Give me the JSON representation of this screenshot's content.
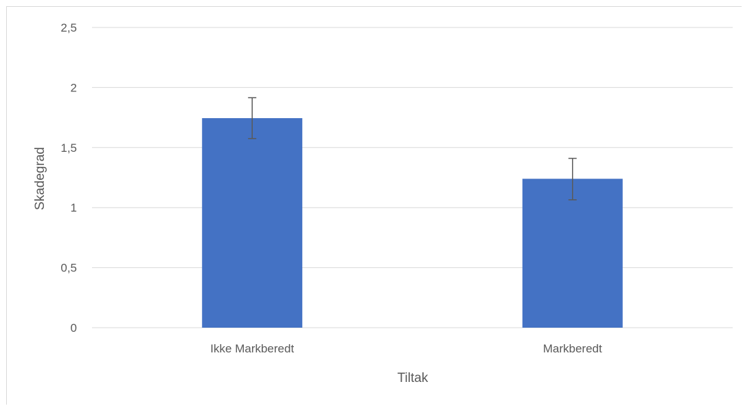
{
  "chart_data": {
    "type": "bar",
    "title": "",
    "xlabel": "Tiltak",
    "ylabel": "Skadegrad",
    "categories": [
      "Ikke Markberedt",
      "Markberedt"
    ],
    "series": [
      {
        "values": [
          1.745,
          1.24
        ],
        "error_low": [
          1.575,
          1.065
        ],
        "error_high": [
          1.915,
          1.41
        ]
      }
    ],
    "ylim": [
      0,
      2.5
    ],
    "yticks": [
      0,
      0.5,
      1,
      1.5,
      2,
      2.5
    ],
    "ytick_labels": [
      "0",
      "0,5",
      "1",
      "1,5",
      "2",
      "2,5"
    ],
    "grid": true,
    "legend": "none",
    "colors": {
      "bar": "#4472c4",
      "grid": "#d9d9d9",
      "error_bar": "#595959",
      "text": "#595959"
    }
  }
}
